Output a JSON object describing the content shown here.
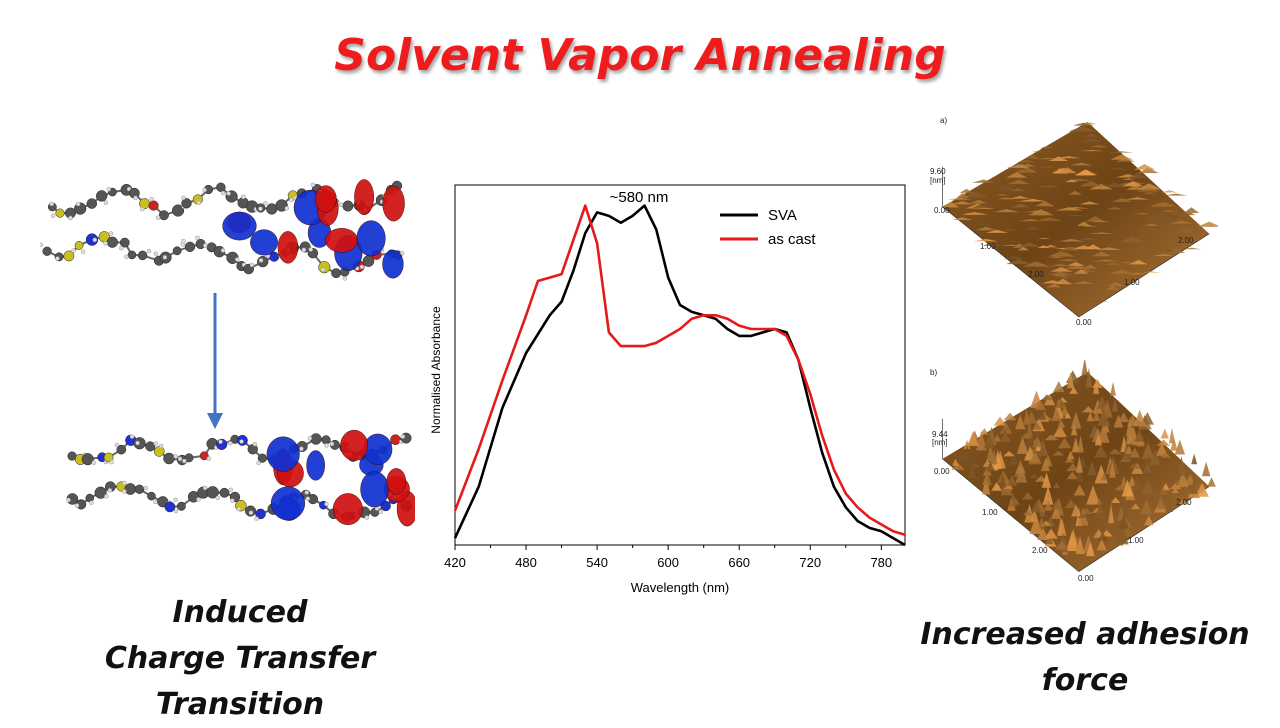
{
  "title": "Solvent Vapor Annealing",
  "captions": {
    "left_line1": "Induced",
    "left_line2": "Charge Transfer Transition",
    "right_line1": "Increased adhesion",
    "right_line2": "force"
  },
  "afm": {
    "panel_a_label": "a)",
    "panel_b_label": "b)",
    "a_z_max": "9.60",
    "a_z_unit": "[nm]",
    "b_z_max": "9.44",
    "b_z_unit": "[nm]",
    "zero": "0.00",
    "tick_1": "1.00",
    "tick_2": "2.00"
  },
  "chart_data": {
    "type": "line",
    "xlabel": "Wavelength (nm)",
    "ylabel": "Normalised Absorbance",
    "xlim": [
      420,
      800
    ],
    "xticks": [
      420,
      480,
      540,
      600,
      660,
      720,
      780
    ],
    "ylim": [
      0.0,
      1.05
    ],
    "annotation": "~580 nm",
    "legend_position": "top-right",
    "series": [
      {
        "name": "SVA",
        "color": "#000000",
        "x": [
          420,
          440,
          460,
          480,
          500,
          510,
          520,
          530,
          540,
          550,
          560,
          570,
          580,
          590,
          600,
          610,
          620,
          630,
          640,
          650,
          660,
          670,
          680,
          690,
          700,
          710,
          720,
          730,
          740,
          750,
          760,
          770,
          780,
          790,
          800
        ],
        "y": [
          0.02,
          0.17,
          0.4,
          0.56,
          0.67,
          0.71,
          0.8,
          0.91,
          0.97,
          0.96,
          0.94,
          0.96,
          0.99,
          0.92,
          0.78,
          0.7,
          0.68,
          0.67,
          0.66,
          0.63,
          0.61,
          0.61,
          0.62,
          0.63,
          0.62,
          0.54,
          0.4,
          0.27,
          0.17,
          0.11,
          0.07,
          0.05,
          0.04,
          0.02,
          0.0
        ]
      },
      {
        "name": "as cast",
        "color": "#e41a1c",
        "x": [
          420,
          440,
          460,
          480,
          490,
          500,
          510,
          520,
          530,
          540,
          550,
          560,
          570,
          580,
          590,
          600,
          610,
          620,
          630,
          640,
          650,
          660,
          670,
          680,
          690,
          700,
          710,
          720,
          730,
          740,
          750,
          760,
          770,
          780,
          790,
          800
        ],
        "y": [
          0.1,
          0.28,
          0.48,
          0.67,
          0.77,
          0.78,
          0.79,
          0.89,
          0.99,
          0.88,
          0.62,
          0.58,
          0.58,
          0.58,
          0.59,
          0.61,
          0.63,
          0.66,
          0.67,
          0.67,
          0.66,
          0.64,
          0.63,
          0.63,
          0.63,
          0.61,
          0.54,
          0.44,
          0.32,
          0.22,
          0.15,
          0.11,
          0.08,
          0.06,
          0.04,
          0.03
        ]
      }
    ]
  }
}
